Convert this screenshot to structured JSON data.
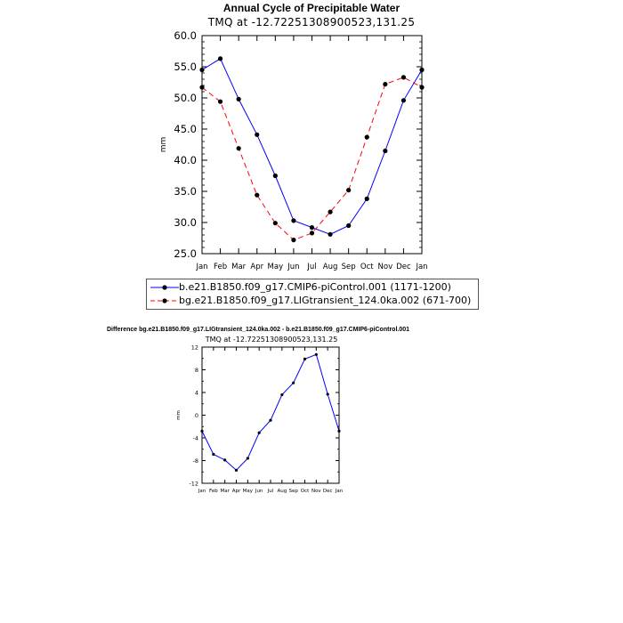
{
  "chart_data": [
    {
      "type": "line",
      "title": "Annual Cycle of Precipitable Water",
      "subtitle": "TMQ at -12.72251308900523,131.25",
      "ylabel": "mm",
      "categories": [
        "Jan",
        "Feb",
        "Mar",
        "Apr",
        "May",
        "Jun",
        "Jul",
        "Aug",
        "Sep",
        "Oct",
        "Nov",
        "Dec",
        "Jan"
      ],
      "ylim": [
        25,
        60
      ],
      "yticks": [
        "25.0",
        "30.0",
        "35.0",
        "40.0",
        "45.0",
        "50.0",
        "55.0",
        "60.0"
      ],
      "series": [
        {
          "name": "b.e21.B1850.f09_g17.CMIP6-piControl.001 (1171-1200)",
          "color": "#0000ff",
          "dash": "solid",
          "values": [
            54.5,
            56.3,
            49.8,
            44.1,
            37.5,
            30.3,
            29.2,
            28.1,
            29.5,
            33.8,
            41.5,
            49.6,
            54.5
          ]
        },
        {
          "name": "bg.e21.B1850.f09_g17.LIGtransient_124.0ka.002 (671-700)",
          "color": "#ff0000",
          "dash": "dashed",
          "values": [
            51.7,
            49.4,
            41.9,
            34.4,
            29.9,
            27.2,
            28.3,
            31.7,
            35.2,
            43.7,
            52.2,
            53.3,
            51.7
          ]
        }
      ],
      "legend_position": "bottom"
    },
    {
      "type": "line",
      "title": "Difference bg.e21.B1850.f09_g17.LIGtransient_124.0ka.002 - b.e21.B1850.f09_g17.CMIP6-piControl.001",
      "subtitle": "TMQ at -12.72251308900523,131.25",
      "ylabel": "mm",
      "categories": [
        "Jan",
        "Feb",
        "Mar",
        "Apr",
        "May",
        "Jun",
        "Jul",
        "Aug",
        "Sep",
        "Oct",
        "Nov",
        "Dec",
        "Jan"
      ],
      "ylim": [
        -12,
        12
      ],
      "yticks": [
        "-12",
        "-8",
        "-4",
        "0",
        "4",
        "8",
        "12"
      ],
      "series": [
        {
          "color": "#0000ff",
          "dash": "solid",
          "values": [
            -2.8,
            -6.9,
            -7.9,
            -9.7,
            -7.6,
            -3.1,
            -0.9,
            3.6,
            5.7,
            9.9,
            10.7,
            3.7,
            -2.8
          ]
        }
      ]
    }
  ]
}
